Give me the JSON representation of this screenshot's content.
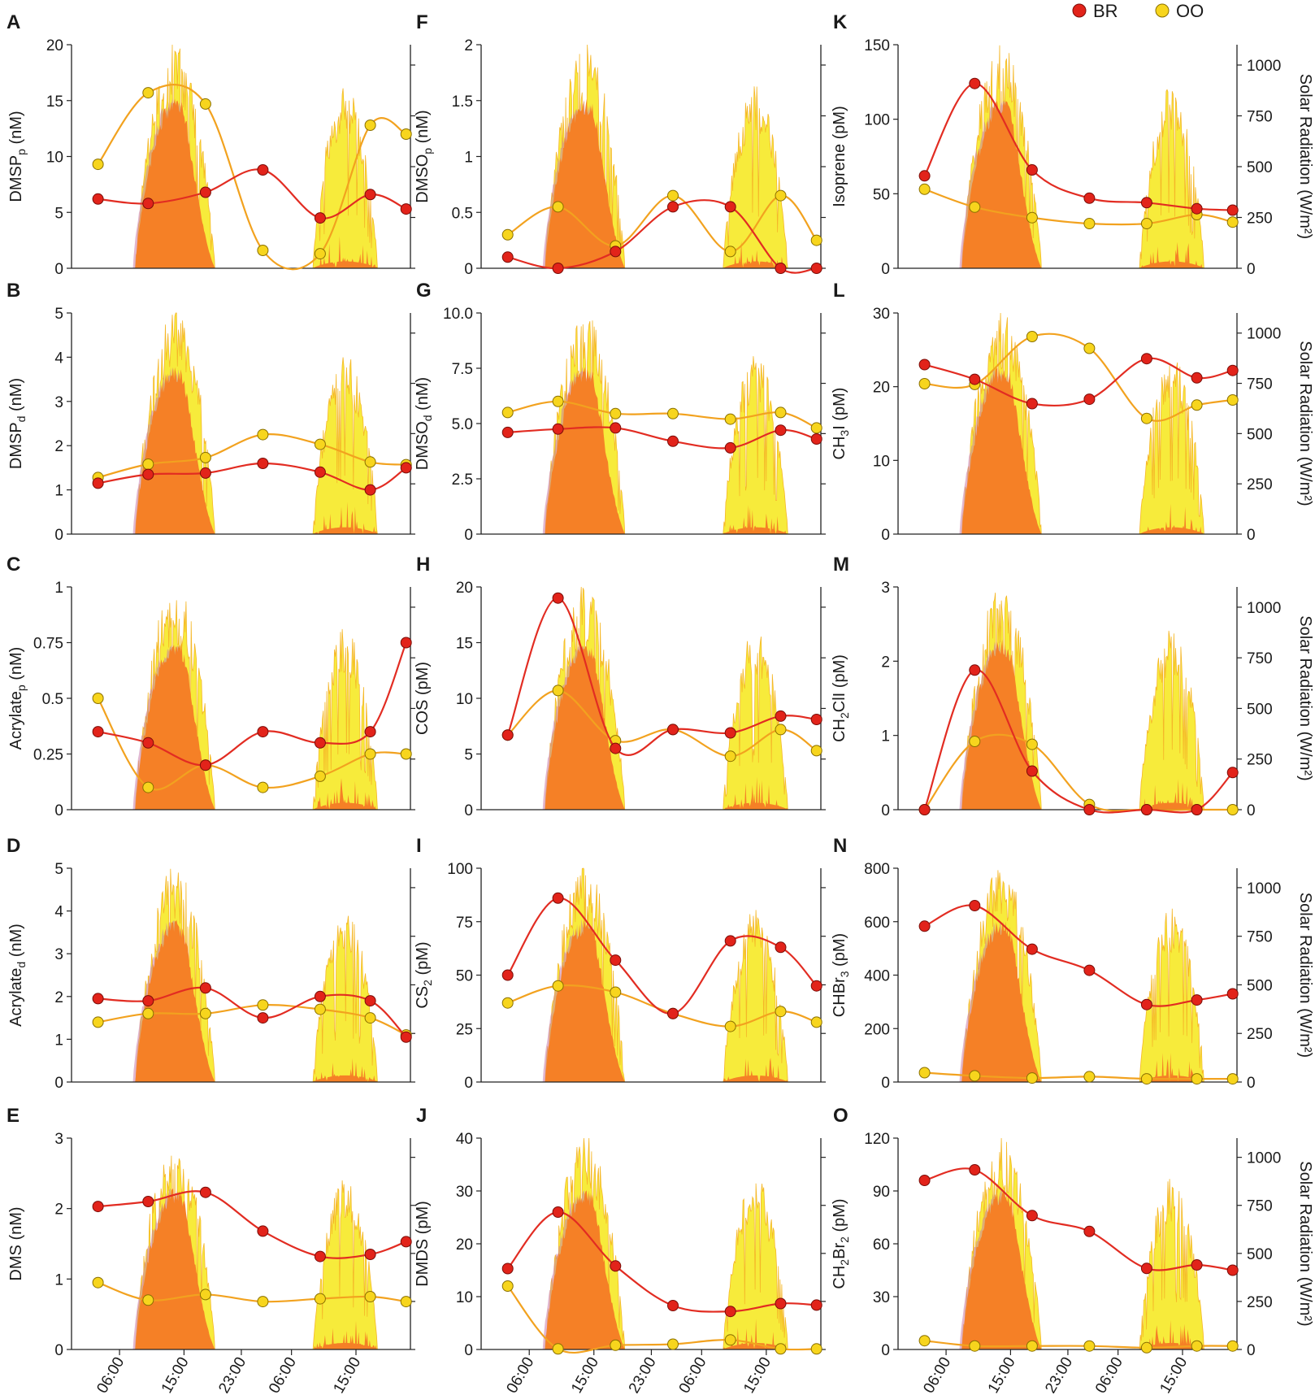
{
  "legend": {
    "items": [
      {
        "label": "BR",
        "color": "#E2231A"
      },
      {
        "label": "OO",
        "color": "#F7D51D"
      }
    ]
  },
  "x_axis": {
    "tick_labels": [
      "06:00",
      "15:00",
      "23:00",
      "06:00",
      "15:00"
    ],
    "tick_hours": [
      6,
      15,
      23,
      30,
      39
    ],
    "range_hours": [
      -0.7,
      46.6
    ]
  },
  "solar": {
    "day1_start_hour": 8.2,
    "day1_end_hour": 19.3,
    "day2_start_hour": 33.0,
    "day2_end_hour": 42.0,
    "ylim": [
      0,
      1100
    ],
    "day1_peak": 1050,
    "day2_peak": 850
  },
  "right_axis": {
    "label": "Solar Radiation (W/m²)",
    "ticks": [
      0,
      250,
      500,
      750,
      1000
    ]
  },
  "colors": {
    "BR": "#E2231A",
    "BR_line": "#E22C22",
    "OO": "#F7D51D",
    "OO_line": "#F2A21F",
    "solar_orange": "#F58026",
    "solar_yellow": "#F7EB3B",
    "solar_purple": "#C97BA8"
  },
  "chart_data": [
    {
      "panel": "A",
      "type": "scatter",
      "ylabel": "DMSP",
      "ysub": "p",
      "yunit": "(nM)",
      "ylim": [
        0,
        20
      ],
      "yticks": [
        "0",
        "5",
        "10",
        "15",
        "20"
      ],
      "series": [
        {
          "name": "BR",
          "x": [
            3,
            10,
            18,
            26,
            34,
            41,
            46
          ],
          "values": [
            6.2,
            5.8,
            6.8,
            8.8,
            4.5,
            6.6,
            5.3
          ]
        },
        {
          "name": "OO",
          "x": [
            3,
            10,
            18,
            26,
            34,
            41,
            46
          ],
          "values": [
            9.3,
            15.7,
            14.7,
            1.6,
            1.3,
            12.8,
            12.0
          ]
        }
      ]
    },
    {
      "panel": "B",
      "type": "scatter",
      "ylabel": "DMSP",
      "ysub": "d",
      "yunit": "(nM)",
      "ylim": [
        0,
        5
      ],
      "yticks": [
        "0",
        "1",
        "2",
        "3",
        "4",
        "5"
      ],
      "series": [
        {
          "name": "BR",
          "x": [
            3,
            10,
            18,
            26,
            34,
            41,
            46
          ],
          "values": [
            1.15,
            1.35,
            1.38,
            1.6,
            1.4,
            1.0,
            1.5
          ]
        },
        {
          "name": "OO",
          "x": [
            3,
            10,
            18,
            26,
            34,
            41,
            46
          ],
          "values": [
            1.28,
            1.58,
            1.73,
            2.25,
            2.03,
            1.63,
            1.57
          ]
        }
      ]
    },
    {
      "panel": "C",
      "type": "scatter",
      "ylabel": "Acrylate",
      "ysub": "p",
      "yunit": "(nM)",
      "ylim": [
        0,
        1
      ],
      "yticks": [
        "0",
        "0.25",
        "0.5",
        "0.75",
        "1"
      ],
      "series": [
        {
          "name": "BR",
          "x": [
            3,
            10,
            18,
            26,
            34,
            41,
            46
          ],
          "values": [
            0.35,
            0.3,
            0.2,
            0.35,
            0.3,
            0.35,
            0.75
          ]
        },
        {
          "name": "OO",
          "x": [
            3,
            10,
            18,
            26,
            34,
            41,
            46
          ],
          "values": [
            0.5,
            0.1,
            0.2,
            0.1,
            0.15,
            0.25,
            0.25
          ]
        }
      ]
    },
    {
      "panel": "D",
      "type": "scatter",
      "ylabel": "Acrylate",
      "ysub": "d",
      "yunit": "(nM)",
      "ylim": [
        0,
        5
      ],
      "yticks": [
        "0",
        "1",
        "2",
        "3",
        "4",
        "5"
      ],
      "series": [
        {
          "name": "BR",
          "x": [
            3,
            10,
            18,
            26,
            34,
            41,
            46
          ],
          "values": [
            1.95,
            1.9,
            2.2,
            1.5,
            2.0,
            1.9,
            1.05
          ]
        },
        {
          "name": "OO",
          "x": [
            3,
            10,
            18,
            26,
            34,
            41,
            46
          ],
          "values": [
            1.4,
            1.6,
            1.6,
            1.8,
            1.7,
            1.5,
            1.1
          ]
        }
      ]
    },
    {
      "panel": "E",
      "type": "scatter",
      "ylabel": "DMS",
      "ysub": "",
      "yunit": "(nM)",
      "ylim": [
        0,
        3
      ],
      "yticks": [
        "0",
        "1",
        "2",
        "3"
      ],
      "series": [
        {
          "name": "BR",
          "x": [
            3,
            10,
            18,
            26,
            34,
            41,
            46
          ],
          "values": [
            2.03,
            2.1,
            2.23,
            1.68,
            1.32,
            1.35,
            1.53
          ]
        },
        {
          "name": "OO",
          "x": [
            3,
            10,
            18,
            26,
            34,
            41,
            46
          ],
          "values": [
            0.95,
            0.7,
            0.78,
            0.68,
            0.72,
            0.75,
            0.68
          ]
        }
      ]
    },
    {
      "panel": "F",
      "type": "scatter",
      "ylabel": "DMSO",
      "ysub": "p",
      "yunit": "(nM)",
      "ylim": [
        0,
        2
      ],
      "yticks": [
        "0",
        "0.5",
        "1",
        "1.5",
        "2"
      ],
      "series": [
        {
          "name": "BR",
          "x": [
            3,
            10,
            18,
            26,
            34,
            41,
            46
          ],
          "values": [
            0.1,
            0.0,
            0.15,
            0.55,
            0.55,
            0.0,
            0.0
          ]
        },
        {
          "name": "OO",
          "x": [
            3,
            10,
            18,
            26,
            34,
            41,
            46
          ],
          "values": [
            0.3,
            0.55,
            0.2,
            0.65,
            0.15,
            0.65,
            0.25
          ]
        }
      ]
    },
    {
      "panel": "G",
      "type": "scatter",
      "ylabel": "DMSO",
      "ysub": "d",
      "yunit": "(nM)",
      "ylim": [
        0,
        10
      ],
      "yticks": [
        "0",
        "2.5",
        "5.0",
        "7.5",
        "10.0"
      ],
      "series": [
        {
          "name": "BR",
          "x": [
            3,
            10,
            18,
            26,
            34,
            41,
            46
          ],
          "values": [
            4.6,
            4.75,
            4.8,
            4.2,
            3.9,
            4.7,
            4.3
          ]
        },
        {
          "name": "OO",
          "x": [
            3,
            10,
            18,
            26,
            34,
            41,
            46
          ],
          "values": [
            5.5,
            6.0,
            5.45,
            5.45,
            5.2,
            5.5,
            4.8
          ]
        }
      ]
    },
    {
      "panel": "H",
      "type": "scatter",
      "ylabel": "COS",
      "ysub": "",
      "yunit": "(pM)",
      "ylim": [
        0,
        20
      ],
      "yticks": [
        "0",
        "5",
        "10",
        "15",
        "20"
      ],
      "series": [
        {
          "name": "BR",
          "x": [
            3,
            10,
            18,
            26,
            34,
            41,
            46
          ],
          "values": [
            6.7,
            19.0,
            5.5,
            7.2,
            6.9,
            8.4,
            8.1
          ]
        },
        {
          "name": "OO",
          "x": [
            3,
            10,
            18,
            26,
            34,
            41,
            46
          ],
          "values": [
            6.7,
            10.7,
            6.2,
            7.2,
            4.8,
            7.2,
            5.3
          ]
        }
      ]
    },
    {
      "panel": "I",
      "type": "scatter",
      "ylabel": "CS",
      "ysub": "2",
      "yunit": "(pM)",
      "ylim": [
        0,
        100
      ],
      "yticks": [
        "0",
        "25",
        "50",
        "75",
        "100"
      ],
      "series": [
        {
          "name": "BR",
          "x": [
            3,
            10,
            18,
            26,
            34,
            41,
            46
          ],
          "values": [
            50,
            86,
            57,
            32,
            66,
            63,
            45
          ]
        },
        {
          "name": "OO",
          "x": [
            3,
            10,
            18,
            26,
            34,
            41,
            46
          ],
          "values": [
            37,
            45,
            42,
            32,
            26,
            33,
            28
          ]
        }
      ]
    },
    {
      "panel": "J",
      "type": "scatter",
      "ylabel": "DMDS",
      "ysub": "",
      "yunit": "(pM)",
      "ylim": [
        0,
        40
      ],
      "yticks": [
        "0",
        "10",
        "20",
        "30",
        "40"
      ],
      "series": [
        {
          "name": "BR",
          "x": [
            3,
            10,
            18,
            26,
            34,
            41,
            46
          ],
          "values": [
            15.3,
            26.0,
            15.8,
            8.3,
            7.2,
            8.7,
            8.4
          ]
        },
        {
          "name": "OO",
          "x": [
            3,
            10,
            18,
            26,
            34,
            41,
            46
          ],
          "values": [
            12.0,
            0.1,
            0.8,
            1.0,
            1.8,
            0.1,
            0.1
          ]
        }
      ]
    },
    {
      "panel": "K",
      "type": "scatter",
      "ylabel": "Isoprene",
      "ysub": "",
      "yunit": "(pM)",
      "ylim": [
        0,
        150
      ],
      "yticks": [
        "0",
        "50",
        "100",
        "150"
      ],
      "series": [
        {
          "name": "BR",
          "x": [
            3,
            10,
            18,
            26,
            34,
            41,
            46
          ],
          "values": [
            62,
            124,
            66,
            47,
            44,
            40,
            39
          ]
        },
        {
          "name": "OO",
          "x": [
            3,
            10,
            18,
            26,
            34,
            41,
            46
          ],
          "values": [
            53,
            41,
            34,
            30,
            30,
            36,
            31
          ]
        }
      ]
    },
    {
      "panel": "L",
      "type": "scatter",
      "ylabel": "CH",
      "ysub": "3",
      "ytail": "I",
      "yunit": "(pM)",
      "ylim": [
        0,
        30
      ],
      "yticks": [
        "0",
        "10",
        "20",
        "30"
      ],
      "series": [
        {
          "name": "BR",
          "x": [
            3,
            10,
            18,
            26,
            34,
            41,
            46
          ],
          "values": [
            23,
            21,
            17.7,
            18.3,
            23.8,
            21.2,
            22.2
          ]
        },
        {
          "name": "OO",
          "x": [
            3,
            10,
            18,
            26,
            34,
            41,
            46
          ],
          "values": [
            20.4,
            20.3,
            26.8,
            25.2,
            15.7,
            17.5,
            18.2
          ]
        }
      ]
    },
    {
      "panel": "M",
      "type": "scatter",
      "ylabel": "CH",
      "ysub": "2",
      "ytail": "ClI",
      "yunit": "(pM)",
      "ylim": [
        0,
        3
      ],
      "yticks": [
        "0",
        "1",
        "2",
        "3"
      ],
      "series": [
        {
          "name": "BR",
          "x": [
            3,
            10,
            18,
            26,
            34,
            41,
            46
          ],
          "values": [
            0.0,
            1.88,
            0.52,
            0.0,
            0.0,
            0.0,
            0.5
          ]
        },
        {
          "name": "OO",
          "x": [
            3,
            10,
            18,
            26,
            34,
            41,
            46
          ],
          "values": [
            0.0,
            0.92,
            0.88,
            0.07,
            0.0,
            0.0,
            0.0
          ]
        }
      ]
    },
    {
      "panel": "N",
      "type": "scatter",
      "ylabel": "CHBr",
      "ysub": "3",
      "yunit": "(pM)",
      "ylim": [
        0,
        800
      ],
      "yticks": [
        "0",
        "200",
        "400",
        "600",
        "800"
      ],
      "series": [
        {
          "name": "BR",
          "x": [
            3,
            10,
            18,
            26,
            34,
            41,
            46
          ],
          "values": [
            583,
            660,
            497,
            418,
            290,
            307,
            330
          ]
        },
        {
          "name": "OO",
          "x": [
            3,
            10,
            18,
            26,
            34,
            41,
            46
          ],
          "values": [
            35,
            23,
            15,
            20,
            12,
            12,
            12
          ]
        }
      ]
    },
    {
      "panel": "O",
      "type": "scatter",
      "ylabel": "CH",
      "ysub": "2",
      "ytail": "Br",
      "ysub2": "2",
      "yunit": "(pM)",
      "ylim": [
        0,
        120
      ],
      "yticks": [
        "0",
        "30",
        "60",
        "90",
        "120"
      ],
      "series": [
        {
          "name": "BR",
          "x": [
            3,
            10,
            18,
            26,
            34,
            41,
            46
          ],
          "values": [
            96,
            102,
            76,
            67,
            46,
            48,
            45
          ]
        },
        {
          "name": "OO",
          "x": [
            3,
            10,
            18,
            26,
            34,
            41,
            46
          ],
          "values": [
            5,
            2,
            2,
            2,
            1,
            2,
            2
          ]
        }
      ]
    }
  ]
}
